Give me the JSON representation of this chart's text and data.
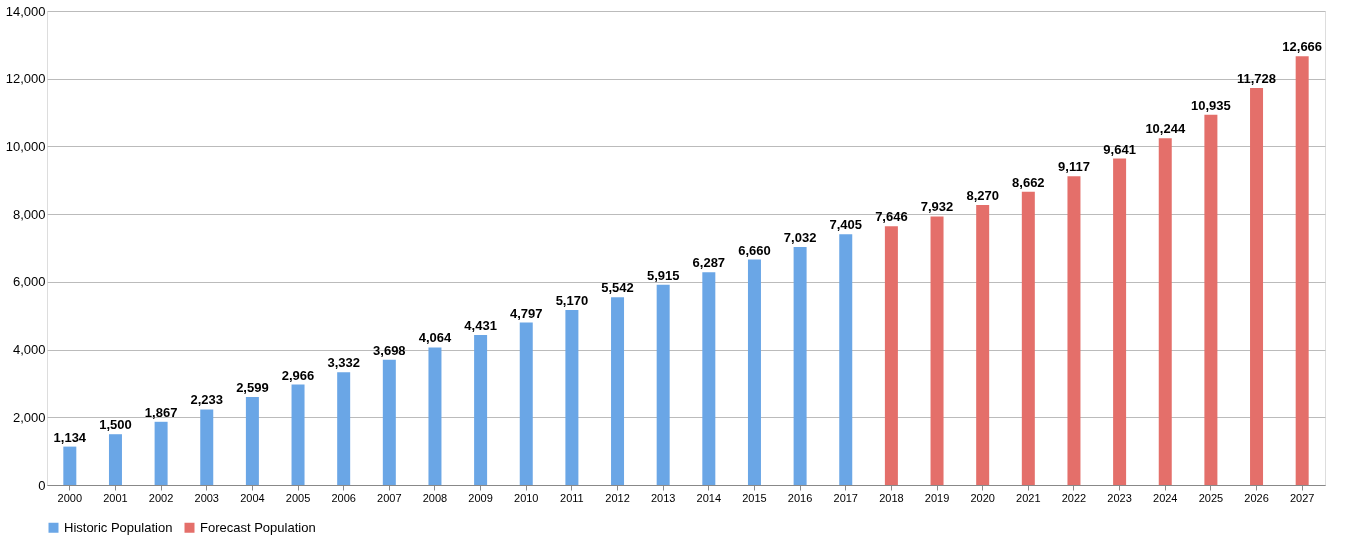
{
  "chart_data": {
    "type": "bar",
    "categories": [
      "2000",
      "2001",
      "2002",
      "2003",
      "2004",
      "2005",
      "2006",
      "2007",
      "2008",
      "2009",
      "2010",
      "2011",
      "2012",
      "2013",
      "2014",
      "2015",
      "2016",
      "2017",
      "2018",
      "2019",
      "2020",
      "2021",
      "2022",
      "2023",
      "2024",
      "2025",
      "2026",
      "2027"
    ],
    "series": [
      {
        "name": "Historic Population",
        "color": "#6aa6e6",
        "values": [
          1134,
          1500,
          1867,
          2233,
          2599,
          2966,
          3332,
          3698,
          4064,
          4431,
          4797,
          5170,
          5542,
          5915,
          6287,
          6660,
          7032,
          7405,
          null,
          null,
          null,
          null,
          null,
          null,
          null,
          null,
          null,
          null
        ],
        "value_labels": [
          "1,134",
          "1,500",
          "1,867",
          "2,233",
          "2,599",
          "2,966",
          "3,332",
          "3,698",
          "4,064",
          "4,431",
          "4,797",
          "5,170",
          "5,542",
          "5,915",
          "6,287",
          "6,660",
          "7,032",
          "7,405",
          null,
          null,
          null,
          null,
          null,
          null,
          null,
          null,
          null,
          null
        ]
      },
      {
        "name": "Forecast Population",
        "color": "#e46f6a",
        "values": [
          null,
          null,
          null,
          null,
          null,
          null,
          null,
          null,
          null,
          null,
          null,
          null,
          null,
          null,
          null,
          null,
          null,
          null,
          7646,
          7932,
          8270,
          8662,
          9117,
          9641,
          10244,
          10935,
          11728,
          12666
        ],
        "value_labels": [
          null,
          null,
          null,
          null,
          null,
          null,
          null,
          null,
          null,
          null,
          null,
          null,
          null,
          null,
          null,
          null,
          null,
          null,
          "7,646",
          "7,932",
          "8,270",
          "8,662",
          "9,117",
          "9,641",
          "10,244",
          "10,935",
          "11,728",
          "12,666"
        ]
      }
    ],
    "ylim": [
      0,
      14000
    ],
    "yticks": [
      0,
      {
        "value": 2000,
        "label": "2,000"
      },
      {
        "value": 4000,
        "label": "4,000"
      },
      {
        "value": 6000,
        "label": "6,000"
      },
      {
        "value": 8000,
        "label": "8,000"
      },
      {
        "value": 10000,
        "label": "10,000"
      },
      {
        "value": 12000,
        "label": "12,000"
      },
      {
        "value": 14000,
        "label": "14,000"
      }
    ],
    "grid": "y",
    "legend": "bottom"
  }
}
